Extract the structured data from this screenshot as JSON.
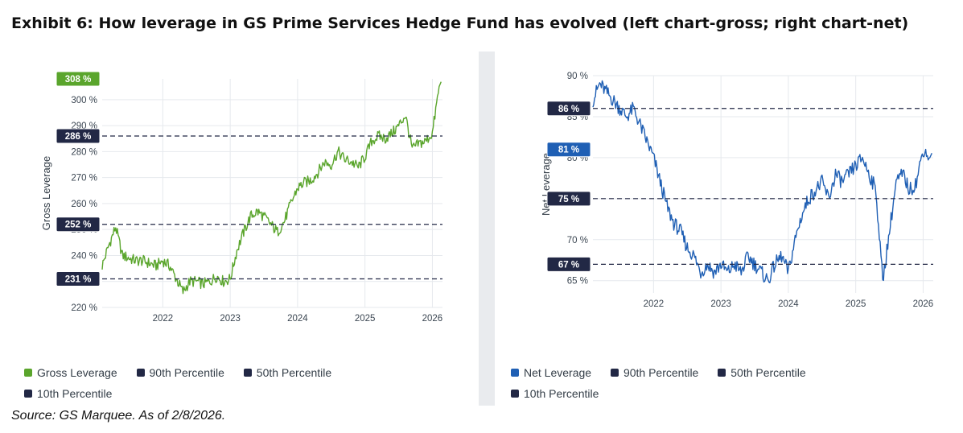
{
  "title": "Exhibit 6: How leverage in GS Prime Services Hedge Fund has evolved (left chart-gross; right chart-net)",
  "source": "Source: GS Marquee. As of 2/8/2026.",
  "colors": {
    "gross": "#5aa52c",
    "net": "#1f5fb4",
    "percentile": "#222845",
    "grid": "#e6e9ed"
  },
  "chart_data": [
    {
      "type": "line",
      "ylabel": "Gross Leverage",
      "xlabel": "",
      "ylim": [
        220,
        308
      ],
      "xlim": [
        2021.1,
        2026.15
      ],
      "y_ticks": [
        220,
        230,
        240,
        250,
        260,
        270,
        280,
        290,
        300
      ],
      "y_tick_labels": [
        "220 %",
        "230 %",
        "240 %",
        "250 %",
        "260 %",
        "270 %",
        "280 %",
        "290 %",
        "300 %"
      ],
      "x_ticks": [
        2022,
        2023,
        2024,
        2025,
        2026
      ],
      "x_tick_labels": [
        "2022",
        "2023",
        "2024",
        "2025",
        "2026"
      ],
      "grid": true,
      "legend_position": "bottom",
      "series": [
        {
          "name": "Gross Leverage",
          "color": "#5aa52c",
          "x": [
            2021.1,
            2021.2,
            2021.3,
            2021.4,
            2021.5,
            2021.6,
            2021.7,
            2021.8,
            2021.9,
            2022.0,
            2022.1,
            2022.2,
            2022.3,
            2022.4,
            2022.5,
            2022.6,
            2022.7,
            2022.8,
            2022.9,
            2023.0,
            2023.1,
            2023.2,
            2023.3,
            2023.4,
            2023.5,
            2023.6,
            2023.7,
            2023.8,
            2023.9,
            2024.0,
            2024.1,
            2024.2,
            2024.3,
            2024.4,
            2024.5,
            2024.6,
            2024.7,
            2024.8,
            2024.9,
            2025.0,
            2025.1,
            2025.2,
            2025.3,
            2025.4,
            2025.5,
            2025.6,
            2025.7,
            2025.8,
            2025.9,
            2026.0,
            2026.1
          ],
          "y": [
            236,
            244,
            251,
            240,
            239,
            238,
            238,
            237,
            236,
            238,
            236,
            231,
            226,
            230,
            230,
            229,
            230,
            232,
            230,
            231,
            242,
            249,
            255,
            257,
            255,
            252,
            249,
            253,
            260,
            266,
            268,
            269,
            272,
            276,
            275,
            280,
            277,
            276,
            274,
            278,
            284,
            286,
            285,
            287,
            290,
            294,
            281,
            283,
            284,
            287,
            305
          ]
        }
      ],
      "percentiles": [
        {
          "name": "90th Percentile",
          "value": 286,
          "label": "286 %"
        },
        {
          "name": "50th Percentile",
          "value": 252,
          "label": "252 %"
        },
        {
          "name": "10th Percentile",
          "value": 231,
          "label": "231 %"
        }
      ],
      "latest": {
        "value": 308,
        "label": "308 %"
      }
    },
    {
      "type": "line",
      "ylabel": "Net Leverage",
      "xlabel": "",
      "ylim": [
        63.5,
        90
      ],
      "xlim": [
        2021.1,
        2026.15
      ],
      "y_ticks": [
        65,
        70,
        75,
        80,
        85,
        90
      ],
      "y_tick_labels": [
        "65 %",
        "70 %",
        "75 %",
        "80 %",
        "85 %",
        "90 %"
      ],
      "x_ticks": [
        2022,
        2023,
        2024,
        2025,
        2026
      ],
      "x_tick_labels": [
        "2022",
        "2023",
        "2024",
        "2025",
        "2026"
      ],
      "grid": true,
      "legend_position": "bottom",
      "series": [
        {
          "name": "Net Leverage",
          "color": "#1f5fb4",
          "x": [
            2021.1,
            2021.2,
            2021.3,
            2021.4,
            2021.5,
            2021.6,
            2021.7,
            2021.8,
            2021.9,
            2022.0,
            2022.1,
            2022.2,
            2022.3,
            2022.4,
            2022.5,
            2022.6,
            2022.7,
            2022.8,
            2022.9,
            2023.0,
            2023.1,
            2023.2,
            2023.3,
            2023.4,
            2023.5,
            2023.6,
            2023.7,
            2023.8,
            2023.9,
            2024.0,
            2024.1,
            2024.2,
            2024.3,
            2024.4,
            2024.5,
            2024.6,
            2024.7,
            2024.8,
            2024.9,
            2025.0,
            2025.1,
            2025.2,
            2025.3,
            2025.4,
            2025.5,
            2025.6,
            2025.7,
            2025.8,
            2025.9,
            2026.0,
            2026.1
          ],
          "y": [
            87,
            89,
            88,
            87,
            86,
            85,
            86,
            84,
            82,
            80,
            77,
            74,
            72,
            71,
            69,
            68,
            66,
            67,
            66,
            67,
            66,
            67,
            66,
            68,
            67,
            66,
            65,
            67,
            68,
            66,
            70,
            73,
            75,
            76,
            77,
            75,
            78,
            77,
            78,
            79,
            80,
            78,
            76,
            65,
            71,
            77,
            78,
            76,
            77,
            81,
            80
          ]
        }
      ],
      "percentiles": [
        {
          "name": "90th Percentile",
          "value": 86,
          "label": "86 %"
        },
        {
          "name": "50th Percentile",
          "value": 75,
          "label": "75 %"
        },
        {
          "name": "10th Percentile",
          "value": 67,
          "label": "67 %"
        }
      ],
      "latest": {
        "value": 81,
        "label": "81 %"
      }
    }
  ]
}
